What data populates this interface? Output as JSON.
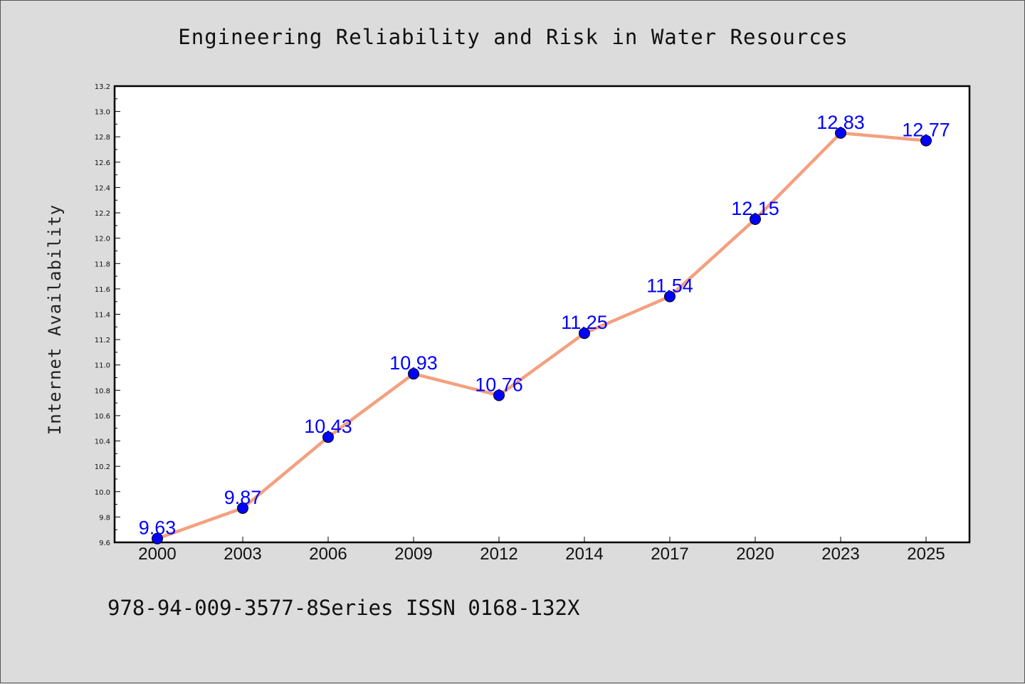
{
  "title": "Engineering Reliability and Risk in Water Resources",
  "ylabel": "Internet Availability",
  "footer": "978-94-009-3577-8Series ISSN 0168-132X",
  "colors": {
    "page_background": "#dcdcdc",
    "plot_background": "#ffffff",
    "line": "#f4a07f",
    "marker": "#0000ff",
    "data_label": "#0000ff"
  },
  "chart_data": {
    "type": "line",
    "title": "Engineering Reliability and Risk in Water Resources",
    "xlabel": "",
    "ylabel": "Internet Availability",
    "categories": [
      "2000",
      "2003",
      "2006",
      "2009",
      "2012",
      "2014",
      "2017",
      "2020",
      "2023",
      "2025"
    ],
    "series": [
      {
        "values": [
          9.63,
          9.87,
          10.43,
          10.93,
          10.76,
          11.25,
          11.54,
          12.15,
          12.83,
          12.77
        ],
        "labels": [
          "9.63",
          "9.87",
          "10.43",
          "10.93",
          "10.76",
          "11.25",
          "11.54",
          "12.15",
          "12.83",
          "12.77"
        ]
      }
    ],
    "ylim": [
      9.6,
      13.2
    ],
    "yticks": [
      "9.6",
      "9.8",
      "10.0",
      "10.2",
      "10.4",
      "10.6",
      "10.8",
      "11.0",
      "11.2",
      "11.4",
      "11.6",
      "11.8",
      "12.0",
      "12.2",
      "12.4",
      "12.6",
      "12.8",
      "13.0",
      "13.2"
    ],
    "grid": false,
    "legend": "none"
  }
}
